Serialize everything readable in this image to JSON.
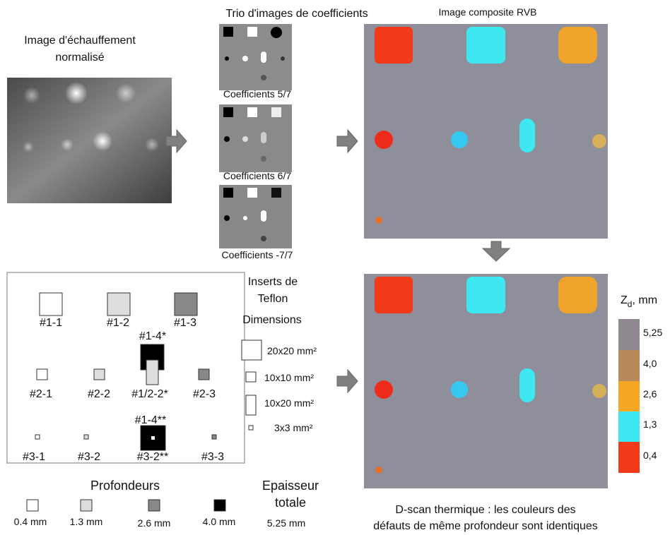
{
  "titles": {
    "heating": [
      "Image d'échauffement",
      "normalisé"
    ],
    "trio": "Trio d'images de coefficients",
    "composite": "Image composite RVB"
  },
  "coefficients": [
    "Coefficients 5/7",
    "Coefficients 6/7",
    "Coefficients -7/7"
  ],
  "inserts": {
    "labels": [
      "#1-1",
      "#1-2",
      "#1-3",
      "#1-4*",
      "#2-1",
      "#2-2",
      "#1/2-2*",
      "#2-3",
      "#1-4**",
      "#3-1",
      "#3-2",
      "#3-2**",
      "#3-3"
    ]
  },
  "dimensions": {
    "title": [
      "Inserts de",
      "Teflon"
    ],
    "heading": "Dimensions",
    "items": [
      "20x20 mm²",
      "10x10 mm²",
      "10x20 mm²",
      "3x3  mm²"
    ]
  },
  "depths": {
    "title": "Profondeurs",
    "items": [
      "0.4 mm",
      "1.3 mm",
      "2.6 mm",
      "4.0  mm"
    ],
    "total_title": [
      "Epaisseur",
      "totale"
    ],
    "total": "5.25 mm"
  },
  "colorbar": {
    "symbol": "Z",
    "subscript": "d",
    "unit": ", mm",
    "labels": [
      "5,25",
      "4,0",
      "2,6",
      "1,3",
      "0,4"
    ]
  },
  "caption": [
    "D-scan thermique : les couleurs des",
    "défauts de même profondeur sont identiques"
  ]
}
